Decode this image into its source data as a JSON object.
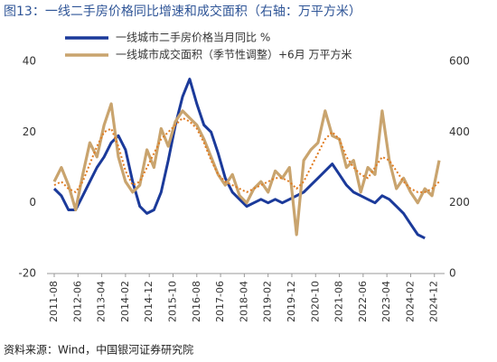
{
  "chart_data": {
    "type": "line",
    "title": "图13：一线二手房价格同比增速和成交面积（右轴：万平方米）",
    "source": "资料来源：Wind，中国银河证券研究院",
    "x": [
      "2011-08",
      "2011-11",
      "2012-02",
      "2012-05",
      "2012-08",
      "2012-11",
      "2013-02",
      "2013-05",
      "2013-08",
      "2013-11",
      "2014-02",
      "2014-05",
      "2014-08",
      "2014-11",
      "2015-02",
      "2015-05",
      "2015-08",
      "2015-11",
      "2016-02",
      "2016-05",
      "2016-08",
      "2016-11",
      "2017-02",
      "2017-05",
      "2017-08",
      "2017-11",
      "2018-02",
      "2018-05",
      "2018-08",
      "2018-11",
      "2019-02",
      "2019-05",
      "2019-08",
      "2019-11",
      "2020-02",
      "2020-05",
      "2020-08",
      "2020-11",
      "2021-02",
      "2021-05",
      "2021-08",
      "2021-11",
      "2022-02",
      "2022-05",
      "2022-08",
      "2022-11",
      "2023-02",
      "2023-05",
      "2023-08",
      "2023-11",
      "2024-02",
      "2024-05",
      "2024-08",
      "2024-11",
      "2025-02"
    ],
    "series": [
      {
        "name": "一线城市二手房价格当月同比 %",
        "color": "#1b3a9a",
        "values": [
          4,
          2,
          -2,
          -2,
          2,
          6,
          10,
          13,
          17,
          19,
          15,
          6,
          -1,
          -3,
          -2,
          3,
          12,
          22,
          30,
          35,
          28,
          22,
          20,
          14,
          7,
          3,
          1,
          -1,
          0,
          1,
          0,
          1,
          0,
          1,
          2,
          3,
          5,
          7,
          9,
          11,
          8,
          5,
          3,
          2,
          1,
          0,
          2,
          1,
          -1,
          -3,
          -6,
          -9,
          -10,
          null,
          null
        ]
      },
      {
        "name": "一线城市成交面积（季节性调整）+6月 万平方米",
        "color": "#c9a46e",
        "axis": "y2",
        "values": [
          260,
          300,
          250,
          180,
          280,
          370,
          330,
          420,
          480,
          330,
          260,
          230,
          250,
          350,
          300,
          410,
          360,
          430,
          460,
          440,
          420,
          380,
          330,
          280,
          250,
          280,
          220,
          200,
          240,
          260,
          230,
          290,
          270,
          300,
          110,
          320,
          350,
          370,
          460,
          390,
          380,
          300,
          320,
          230,
          300,
          280,
          460,
          320,
          240,
          270,
          230,
          200,
          240,
          220,
          320
        ]
      },
      {
        "color": "#e07b20",
        "axis": "y2",
        "values": [
          250,
          260,
          240,
          230,
          260,
          310,
          360,
          400,
          410,
          360,
          290,
          250,
          260,
          300,
          340,
          380,
          400,
          420,
          440,
          430,
          410,
          370,
          320,
          280,
          260,
          250,
          240,
          230,
          240,
          250,
          260,
          270,
          270,
          260,
          240,
          260,
          300,
          340,
          380,
          400,
          380,
          330,
          300,
          280,
          270,
          300,
          330,
          320,
          290,
          260,
          240,
          230,
          230,
          240,
          260
        ]
      }
    ],
    "xlim": [
      "2011-08",
      "2025-02"
    ],
    "xticks": [
      "2011-08",
      "2012-06",
      "2013-04",
      "2014-02",
      "2014-12",
      "2015-10",
      "2016-08",
      "2017-06",
      "2018-04",
      "2019-02",
      "2019-12",
      "2020-10",
      "2021-08",
      "2022-06",
      "2023-04",
      "2024-02",
      "2024-12"
    ],
    "ylim": [
      -20,
      40
    ],
    "yticks": [
      -20,
      0,
      20,
      40
    ],
    "y2lim": [
      0,
      600
    ],
    "y2ticks": [
      0,
      200,
      400,
      600
    ]
  }
}
